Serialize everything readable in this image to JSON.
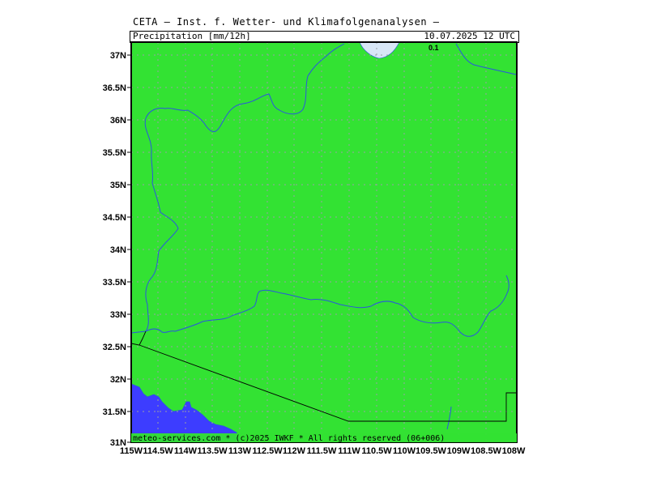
{
  "header": {
    "title": "CETA – Inst. f. Wetter- und Klimafolgenanalysen –",
    "parameter": "Precipitation [mm/12h]",
    "datetime": "10.07.2025  12 UTC"
  },
  "footer": {
    "credit": "meteo-services.com * (c)2025 IWKF * All rights reserved (06+006)"
  },
  "contour_label": "0.1",
  "axes": {
    "lat_labels": [
      "37N",
      "36.5N",
      "36N",
      "35.5N",
      "35N",
      "34.5N",
      "34N",
      "33.5N",
      "33N",
      "32.5N",
      "32N",
      "31.5N",
      "31N"
    ],
    "lon_labels": [
      "115W",
      "114.5W",
      "114W",
      "113.5W",
      "113W",
      "112.5W",
      "112W",
      "111.5W",
      "111W",
      "110.5W",
      "110W",
      "109.5W",
      "109W",
      "108.5W",
      "108W"
    ]
  },
  "colors": {
    "land_fill": "#33e233",
    "water_fill": "#3d3dff",
    "precip_light": "#d8e6f6",
    "rivers": "#2a55e0",
    "border": "#000000",
    "grid": "#9aa0a6"
  }
}
